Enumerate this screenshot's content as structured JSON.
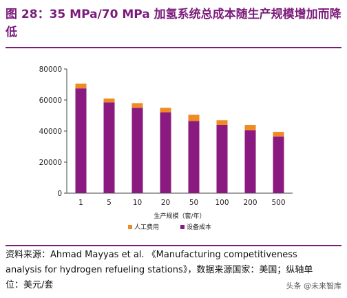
{
  "title": "图 28：35 MPa/70 MPa 加氢系统总成本随生产规模增加而降低",
  "source_text": "资料来源：Ahmad Mayyas et al. 《Manufacturing competitiveness analysis for hydrogen refueling stations》，数据来源国家：美国；纵轴单位：美元/套",
  "watermark": "头条 @未来智库",
  "colors": {
    "title": "#7b1a7b",
    "labor": "#f08a24",
    "equipment": "#8a1a80"
  },
  "chart_data": {
    "type": "bar",
    "stacked": true,
    "categories": [
      "1",
      "5",
      "10",
      "20",
      "50",
      "100",
      "200",
      "500"
    ],
    "series": [
      {
        "name": "设备成本",
        "values": [
          67500,
          58500,
          55000,
          52000,
          46500,
          44000,
          40500,
          36500
        ]
      },
      {
        "name": "人工费用",
        "values": [
          3000,
          2500,
          3000,
          3000,
          4000,
          3000,
          3500,
          3000
        ]
      }
    ],
    "xlabel": "生产规模（套/年）",
    "ylabel": "",
    "ylim": [
      0,
      80000
    ],
    "yticks": [
      0,
      20000,
      40000,
      60000,
      80000
    ],
    "legend": [
      "人工费用",
      "设备成本"
    ],
    "legend_position": "bottom",
    "grid": false
  }
}
